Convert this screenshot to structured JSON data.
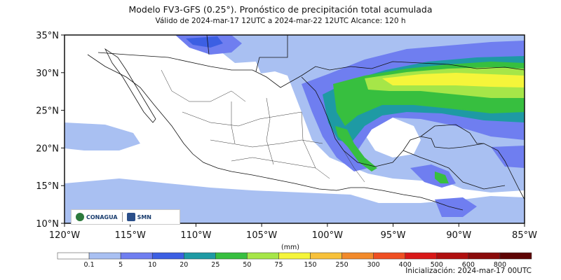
{
  "header": {
    "title": "Modelo FV3-GFS (0.25°). Pronóstico de precipitación total acumulada",
    "subtitle": "Válido de 2024-mar-17 12UTC a 2024-mar-22 12UTC    Alcance: 120 h"
  },
  "map": {
    "lat_labels": [
      "35°N",
      "30°N",
      "25°N",
      "20°N",
      "15°N",
      "10°N"
    ],
    "lon_labels": [
      "120°W",
      "115°W",
      "110°W",
      "105°W",
      "100°W",
      "95°W",
      "90°W",
      "85°W"
    ],
    "lat_values": [
      35,
      30,
      25,
      20,
      15,
      10
    ],
    "lon_values": [
      -120,
      -115,
      -110,
      -105,
      -100,
      -95,
      -90,
      -85
    ],
    "extent": {
      "lon_min": -120,
      "lon_max": -85,
      "lat_min": 10,
      "lat_max": 35
    }
  },
  "logos": {
    "left": "CONAGUA",
    "right": "SMN"
  },
  "colorbar": {
    "units": "(mm)",
    "ticks": [
      "0.1",
      "5",
      "10",
      "20",
      "25",
      "50",
      "75",
      "150",
      "250",
      "300",
      "400",
      "500",
      "600",
      "800"
    ],
    "colors": [
      "#ffffff",
      "#a9c0f2",
      "#6f7ef0",
      "#3c5fe3",
      "#1e9aa4",
      "#37bf3f",
      "#a6e648",
      "#f5f53a",
      "#f7c13a",
      "#f28a2a",
      "#ef4f22",
      "#d81818",
      "#b00f0f",
      "#8a0a0a",
      "#5e0505"
    ]
  },
  "footer": {
    "init": "Inicialización: 2024-mar-17 00UTC"
  }
}
